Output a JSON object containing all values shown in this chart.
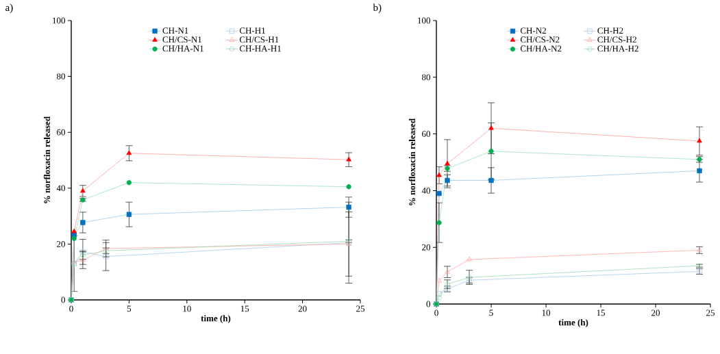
{
  "chart_data": [
    {
      "type": "line",
      "title": "a)",
      "xlabel": "time (h)",
      "ylabel": "% norfloxacin released",
      "xlim": [
        0,
        25
      ],
      "xticks": [
        0,
        5,
        10,
        15,
        20,
        25
      ],
      "ylim": [
        0,
        100
      ],
      "yticks": [
        0,
        20,
        40,
        60,
        80,
        100
      ],
      "legend": "top",
      "grid": false,
      "series": [
        {
          "name": "CH-N1",
          "color": "#0070c0",
          "marker": "square",
          "x": [
            0,
            0.25,
            1,
            5,
            24
          ],
          "values": [
            0,
            23.3,
            27.7,
            30.6,
            33.2
          ],
          "errors": [
            null,
            null,
            3.7,
            4.4,
            3.6
          ]
        },
        {
          "name": "CH-H1",
          "color": "#9dc3e6",
          "marker": "square",
          "x": [
            0,
            0.25,
            1,
            3,
            24
          ],
          "values": [
            0,
            13,
            17.2,
            15.5,
            20.5
          ],
          "errors": [
            null,
            10,
            4.5,
            5,
            14.5
          ]
        },
        {
          "name": "CH/CS-N1",
          "color": "#ff0000",
          "marker": "triangle",
          "x": [
            0,
            0.25,
            1,
            5,
            24
          ],
          "values": [
            0,
            24.5,
            39,
            52.5,
            50.2
          ],
          "errors": [
            null,
            null,
            2,
            2.7,
            2.5
          ]
        },
        {
          "name": "CH/CS-H1",
          "color": "#ff9999",
          "marker": "triangle",
          "x": [
            0,
            0.25,
            1,
            3,
            24
          ],
          "values": [
            0,
            13.5,
            14.2,
            18.4,
            20
          ],
          "errors": [
            null,
            null,
            3,
            3,
            11.5
          ]
        },
        {
          "name": "CH/HA-N1",
          "color": "#00b050",
          "marker": "circle",
          "x": [
            0,
            0.25,
            1,
            5,
            24
          ],
          "values": [
            0,
            22,
            35.8,
            42,
            40.5
          ],
          "errors": [
            null,
            null,
            0.5,
            null,
            null
          ]
        },
        {
          "name": "CH-HA-H1",
          "color": "#8fd4a8",
          "marker": "circle",
          "x": [
            0,
            0.25,
            1,
            3,
            24
          ],
          "values": [
            0,
            13,
            16,
            17.6,
            21
          ],
          "errors": [
            null,
            null,
            1.5,
            1,
            0.5
          ]
        }
      ]
    },
    {
      "type": "line",
      "title": "b)",
      "xlabel": "time (h)",
      "ylabel": "% norfloxacin released",
      "xlim": [
        0,
        25
      ],
      "xticks": [
        0,
        5,
        10,
        15,
        20,
        25
      ],
      "ylim": [
        0,
        100
      ],
      "yticks": [
        0,
        20,
        40,
        60,
        80,
        100
      ],
      "legend": "top",
      "grid": false,
      "series": [
        {
          "name": "CH-N2",
          "color": "#0070c0",
          "marker": "square",
          "x": [
            0,
            0.25,
            1,
            5,
            24
          ],
          "values": [
            0,
            39,
            43.6,
            43.6,
            47
          ],
          "errors": [
            null,
            null,
            2,
            4.5,
            4
          ]
        },
        {
          "name": "CH-H2",
          "color": "#9dc3e6",
          "marker": "square",
          "x": [
            0,
            0.25,
            1,
            3,
            24
          ],
          "values": [
            0,
            3.6,
            5.3,
            8.4,
            11.5
          ],
          "errors": [
            null,
            null,
            1,
            1,
            1
          ]
        },
        {
          "name": "CH/CS-N2",
          "color": "#ff0000",
          "marker": "triangle",
          "x": [
            0,
            0.25,
            1,
            5,
            24
          ],
          "values": [
            0,
            45.4,
            49.5,
            62,
            57.5
          ],
          "errors": [
            null,
            3,
            8.5,
            9,
            5
          ]
        },
        {
          "name": "CH/CS-H2",
          "color": "#ff9999",
          "marker": "triangle",
          "x": [
            0,
            0.25,
            1,
            3,
            24
          ],
          "values": [
            0,
            8.2,
            11.3,
            15.7,
            19
          ],
          "errors": [
            null,
            null,
            2,
            null,
            1.2
          ]
        },
        {
          "name": "CH/HA-N2",
          "color": "#00b050",
          "marker": "circle",
          "x": [
            0,
            0.25,
            1,
            5,
            24
          ],
          "values": [
            0,
            28.7,
            47.8,
            53.9,
            51
          ],
          "errors": [
            null,
            7,
            1,
            10,
            1
          ]
        },
        {
          "name": "CH/HA-H2",
          "color": "#8fd4a8",
          "marker": "circle",
          "x": [
            0,
            0.25,
            1,
            3,
            24
          ],
          "values": [
            0,
            2.2,
            7,
            9.4,
            13.5
          ],
          "errors": [
            null,
            null,
            1.5,
            2.5,
            0.5
          ]
        }
      ]
    }
  ]
}
